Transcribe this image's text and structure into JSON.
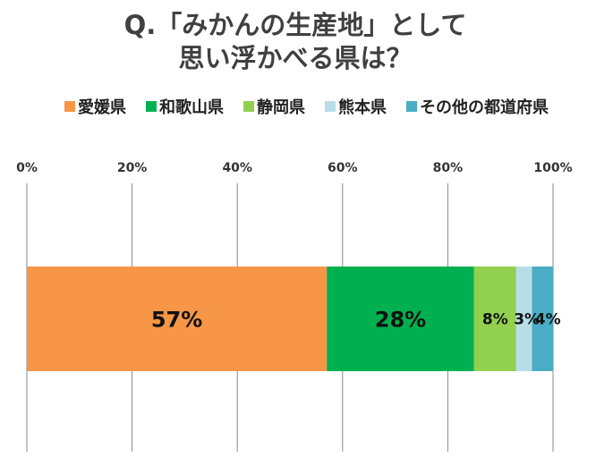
{
  "chart_data": {
    "type": "bar",
    "orientation": "horizontal-stacked-100",
    "title": [
      "Q.「みかんの生産地」として",
      "思い浮かべる県は？"
    ],
    "categories": [
      ""
    ],
    "series": [
      {
        "name": "愛媛県",
        "values": [
          57
        ],
        "label": "57%",
        "color": "#F79646"
      },
      {
        "name": "和歌山県",
        "values": [
          28
        ],
        "label": "28%",
        "color": "#00B050"
      },
      {
        "name": "静岡県",
        "values": [
          8
        ],
        "label": "8%",
        "color": "#92D050"
      },
      {
        "name": "熊本県",
        "values": [
          3
        ],
        "label": "3%",
        "color": "#B7DEE8"
      },
      {
        "name": "その他の都道府県",
        "values": [
          4
        ],
        "label": "4%",
        "color": "#4BACC6"
      }
    ],
    "xlim": [
      0,
      100
    ],
    "xticks": [
      "0%",
      "20%",
      "40%",
      "60%",
      "80%",
      "100%"
    ],
    "grid": true,
    "legend": "top",
    "xaxis_position": "top"
  }
}
